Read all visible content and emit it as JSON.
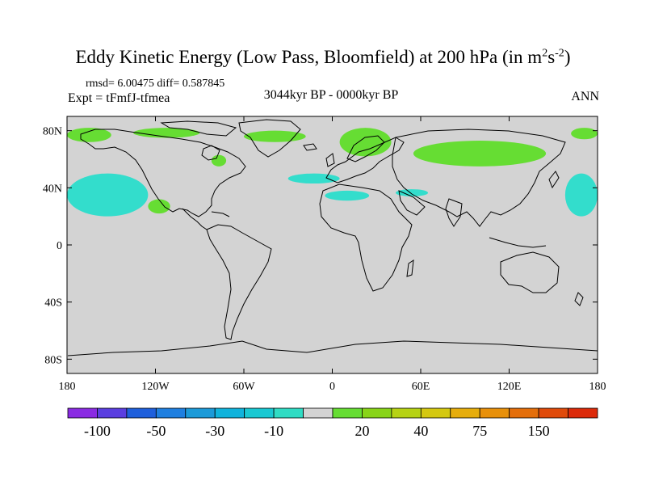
{
  "title_main": "Eddy Kinetic Energy (Low Pass, Bloomfield) at 200 hPa (in m",
  "title_sup1": "2",
  "title_mid": "s",
  "title_sup2": "-2",
  "title_end": ")",
  "stats": "rmsd= 6.00475 diff= 0.587845",
  "expt": "Expt = tFmfJ-tfmea",
  "period": "3044kyr BP - 0000kyr BP",
  "season": "ANN",
  "colors": {
    "land_bg": "#d3d3d3",
    "coast": "#000000",
    "pos_light": "#66dd33",
    "neg_light": "#33ddcc"
  },
  "chart_data": {
    "type": "heatmap",
    "projection": "cylindrical-equidistant",
    "title": "Eddy Kinetic Energy (Low Pass, Bloomfield) at 200 hPa (in m2s-2)",
    "x_range": [
      -180,
      180
    ],
    "y_range": [
      -90,
      90
    ],
    "x_ticks": [
      {
        "value": -180,
        "label": "180"
      },
      {
        "value": -120,
        "label": "120W"
      },
      {
        "value": -60,
        "label": "60W"
      },
      {
        "value": 0,
        "label": "0"
      },
      {
        "value": 60,
        "label": "60E"
      },
      {
        "value": 120,
        "label": "120E"
      },
      {
        "value": 180,
        "label": "180"
      }
    ],
    "y_ticks": [
      {
        "value": 80,
        "label": "80N"
      },
      {
        "value": 40,
        "label": "40N"
      },
      {
        "value": 0,
        "label": "0"
      },
      {
        "value": -40,
        "label": "40S"
      },
      {
        "value": -80,
        "label": "80S"
      }
    ],
    "colorbar": {
      "colors": [
        "#8a2be2",
        "#5a3ee0",
        "#1e5fdc",
        "#1f7fe0",
        "#1c9ad8",
        "#10b3dc",
        "#19c8d2",
        "#30dcc4",
        "#d3d3d3",
        "#66dd33",
        "#88d418",
        "#b6d214",
        "#d4c810",
        "#e6ad0c",
        "#e8900a",
        "#e46e0a",
        "#e04a0a",
        "#dc2a0a"
      ],
      "labels": [
        {
          "boundary": 1,
          "label": "-100"
        },
        {
          "boundary": 3,
          "label": "-50"
        },
        {
          "boundary": 5,
          "label": "-30"
        },
        {
          "boundary": 7,
          "label": "-10"
        },
        {
          "boundary": 10,
          "label": "20"
        },
        {
          "boundary": 12,
          "label": "40"
        },
        {
          "boundary": 14,
          "label": "75"
        },
        {
          "boundary": 16,
          "label": "150"
        }
      ]
    },
    "anomaly_regions": [
      {
        "name": "arctic-pacific-west",
        "sign": "positive",
        "level": 20,
        "lon": [
          -180,
          -150
        ],
        "lat": [
          72,
          82
        ]
      },
      {
        "name": "arctic-north-america",
        "sign": "positive",
        "level": 20,
        "lon": [
          -135,
          -90
        ],
        "lat": [
          75,
          82
        ]
      },
      {
        "name": "arctic-greenland",
        "sign": "positive",
        "level": 20,
        "lon": [
          -60,
          -18
        ],
        "lat": [
          72,
          80
        ]
      },
      {
        "name": "hudson-bay",
        "sign": "positive",
        "level": 20,
        "lon": [
          -82,
          -72
        ],
        "lat": [
          55,
          63
        ]
      },
      {
        "name": "scandinavia-arctic",
        "sign": "positive",
        "level": 20,
        "lon": [
          5,
          40
        ],
        "lat": [
          62,
          82
        ]
      },
      {
        "name": "siberia",
        "sign": "positive",
        "level": 20,
        "lon": [
          55,
          145
        ],
        "lat": [
          55,
          73
        ]
      },
      {
        "name": "arctic-east",
        "sign": "positive",
        "level": 20,
        "lon": [
          162,
          180
        ],
        "lat": [
          74,
          82
        ]
      },
      {
        "name": "subtropical-atlantic-west",
        "sign": "positive",
        "level": 20,
        "lon": [
          -125,
          -110
        ],
        "lat": [
          22,
          32
        ]
      },
      {
        "name": "north-pacific",
        "sign": "negative",
        "level": -10,
        "lon": [
          -180,
          -125
        ],
        "lat": [
          20,
          50
        ]
      },
      {
        "name": "north-pacific-east",
        "sign": "negative",
        "level": -10,
        "lon": [
          158,
          180
        ],
        "lat": [
          20,
          50
        ]
      },
      {
        "name": "north-atlantic",
        "sign": "negative",
        "level": -10,
        "lon": [
          -30,
          5
        ],
        "lat": [
          43,
          50
        ]
      },
      {
        "name": "mediterranean",
        "sign": "negative",
        "level": -10,
        "lon": [
          -5,
          25
        ],
        "lat": [
          31,
          38
        ]
      },
      {
        "name": "middle-east",
        "sign": "negative",
        "level": -10,
        "lon": [
          43,
          65
        ],
        "lat": [
          34,
          39
        ]
      }
    ]
  }
}
